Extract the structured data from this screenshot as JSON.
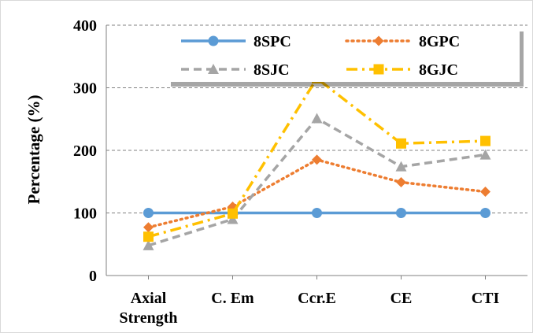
{
  "chart_data": {
    "type": "line",
    "title": "",
    "xlabel": "",
    "ylabel": "Percentage (%)",
    "categories": [
      "Axial Strength",
      "C. Em",
      "Ccr.E",
      "CE",
      "CTI"
    ],
    "category_lines": [
      [
        "Axial",
        "Strength"
      ],
      [
        "C. Em"
      ],
      [
        "Ccr.E"
      ],
      [
        "CE"
      ],
      [
        "CTI"
      ]
    ],
    "ylim": [
      0,
      400
    ],
    "yticks": [
      "0",
      "100",
      "200",
      "300",
      "400"
    ],
    "grid": "horizontal dashed",
    "legend_placement": "top",
    "series": [
      {
        "name": "8SPC",
        "values": [
          100,
          100,
          100,
          100,
          100
        ],
        "color": "#5B9BD5",
        "marker": "circle",
        "dash": "solid"
      },
      {
        "name": "8GPC",
        "values": [
          77,
          110,
          185,
          149,
          134
        ],
        "color": "#ED7D31",
        "marker": "diamond",
        "dash": "dot"
      },
      {
        "name": "8SJC",
        "values": [
          48,
          90,
          251,
          174,
          193
        ],
        "color": "#A5A5A5",
        "marker": "triangle",
        "dash": "dash"
      },
      {
        "name": "8GJC",
        "values": [
          62,
          99,
          315,
          211,
          215
        ],
        "color": "#FFC000",
        "marker": "square",
        "dash": "dashdot"
      }
    ]
  }
}
